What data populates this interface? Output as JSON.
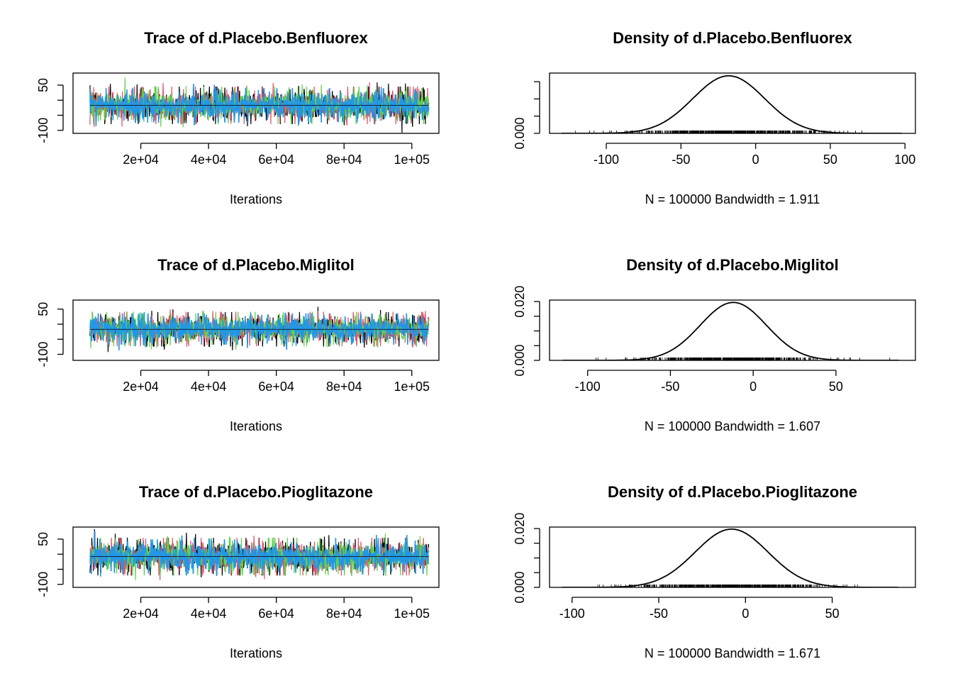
{
  "colors": {
    "chain1": "#000000",
    "chain2": "#DF536B",
    "chain3": "#61D04F",
    "chain4": "#2297E6",
    "axis": "#000000",
    "rug": "#555555"
  },
  "chart_data": [
    {
      "type": "line",
      "plot": "trace",
      "title": "Trace of d.Placebo.Benfluorex",
      "xlabel": "Iterations",
      "ylabel": "",
      "xlim": [
        0,
        108000
      ],
      "ylim": [
        -110,
        90
      ],
      "x_ticks": [
        20000,
        40000,
        60000,
        80000,
        100000
      ],
      "x_tick_labels": [
        "2e+04",
        "4e+04",
        "6e+04",
        "8e+04",
        "1e+05"
      ],
      "y_ticks": [
        -100,
        -50,
        0,
        50
      ],
      "y_tick_labels": [
        "-100",
        "",
        "",
        "50"
      ],
      "x_range": [
        5000,
        105000
      ],
      "series": [
        {
          "color": "#000000",
          "mean": -17,
          "sd": 24
        },
        {
          "color": "#DF536B",
          "mean": -17,
          "sd": 24
        },
        {
          "color": "#61D04F",
          "mean": -17,
          "sd": 24
        },
        {
          "color": "#2297E6",
          "mean": -17,
          "sd": 22
        }
      ]
    },
    {
      "type": "line",
      "plot": "density",
      "title": "Density of d.Placebo.Benfluorex",
      "xlabel": "N = 100000   Bandwidth = 1.911",
      "ylabel": "",
      "xlim": [
        -138,
        107
      ],
      "ylim": [
        0,
        0.0175
      ],
      "x_ticks": [
        -100,
        -50,
        0,
        50,
        100
      ],
      "x_tick_labels": [
        "-100",
        "-50",
        "0",
        "50",
        "100"
      ],
      "y_ticks": [
        0,
        0.005,
        0.01,
        0.015
      ],
      "y_tick_labels": [
        "0.000",
        "",
        "",
        ""
      ],
      "x_range": [
        -130,
        98
      ],
      "mode": -18,
      "sd": 24,
      "peak": 0.0167
    },
    {
      "type": "line",
      "plot": "trace",
      "title": "Trace of d.Placebo.Miglitol",
      "xlabel": "Iterations",
      "ylabel": "",
      "xlim": [
        0,
        108000
      ],
      "ylim": [
        -120,
        80
      ],
      "x_ticks": [
        20000,
        40000,
        60000,
        80000,
        100000
      ],
      "x_tick_labels": [
        "2e+04",
        "4e+04",
        "6e+04",
        "8e+04",
        "1e+05"
      ],
      "y_ticks": [
        -100,
        -50,
        0,
        50
      ],
      "y_tick_labels": [
        "-100",
        "",
        "",
        "50"
      ],
      "x_range": [
        5000,
        105000
      ],
      "series": [
        {
          "color": "#000000",
          "mean": -17,
          "sd": 22
        },
        {
          "color": "#DF536B",
          "mean": -16,
          "sd": 22
        },
        {
          "color": "#61D04F",
          "mean": -16,
          "sd": 22
        },
        {
          "color": "#2297E6",
          "mean": -16,
          "sd": 20
        }
      ]
    },
    {
      "type": "line",
      "plot": "density",
      "title": "Density of d.Placebo.Miglitol",
      "xlabel": "N = 100000   Bandwidth = 1.607",
      "ylabel": "",
      "xlim": [
        -123,
        98
      ],
      "ylim": [
        0,
        0.0205
      ],
      "x_ticks": [
        -100,
        -50,
        0,
        50
      ],
      "x_tick_labels": [
        "-100",
        "-50",
        "0",
        "50"
      ],
      "y_ticks": [
        0,
        0.005,
        0.01,
        0.015,
        0.02
      ],
      "y_tick_labels": [
        "0.000",
        "",
        "",
        "",
        "0.020"
      ],
      "x_range": [
        -115,
        88
      ],
      "mode": -12,
      "sd": 20,
      "peak": 0.0197
    },
    {
      "type": "line",
      "plot": "trace",
      "title": "Trace of d.Placebo.Pioglitazone",
      "xlabel": "Iterations",
      "ylabel": "",
      "xlim": [
        0,
        108000
      ],
      "ylim": [
        -110,
        90
      ],
      "x_ticks": [
        20000,
        40000,
        60000,
        80000,
        100000
      ],
      "x_tick_labels": [
        "2e+04",
        "4e+04",
        "6e+04",
        "8e+04",
        "1e+05"
      ],
      "y_ticks": [
        -100,
        -50,
        0,
        50
      ],
      "y_tick_labels": [
        "-100",
        "",
        "",
        "50"
      ],
      "x_range": [
        5000,
        105000
      ],
      "series": [
        {
          "color": "#000000",
          "mean": -8,
          "sd": 24
        },
        {
          "color": "#DF536B",
          "mean": -8,
          "sd": 24
        },
        {
          "color": "#61D04F",
          "mean": -8,
          "sd": 24
        },
        {
          "color": "#2297E6",
          "mean": -8,
          "sd": 22
        }
      ]
    },
    {
      "type": "line",
      "plot": "density",
      "title": "Density of d.Placebo.Pioglitazone",
      "xlabel": "N = 100000   Bandwidth = 1.671",
      "ylabel": "",
      "xlim": [
        -113,
        98
      ],
      "ylim": [
        0,
        0.0205
      ],
      "x_ticks": [
        -100,
        -50,
        0,
        50
      ],
      "x_tick_labels": [
        "-100",
        "-50",
        "0",
        "50"
      ],
      "y_ticks": [
        0,
        0.005,
        0.01,
        0.015,
        0.02
      ],
      "y_tick_labels": [
        "0.000",
        "",
        "",
        "",
        "0.020"
      ],
      "x_range": [
        -106,
        88
      ],
      "mode": -8,
      "sd": 21,
      "peak": 0.0198
    }
  ]
}
